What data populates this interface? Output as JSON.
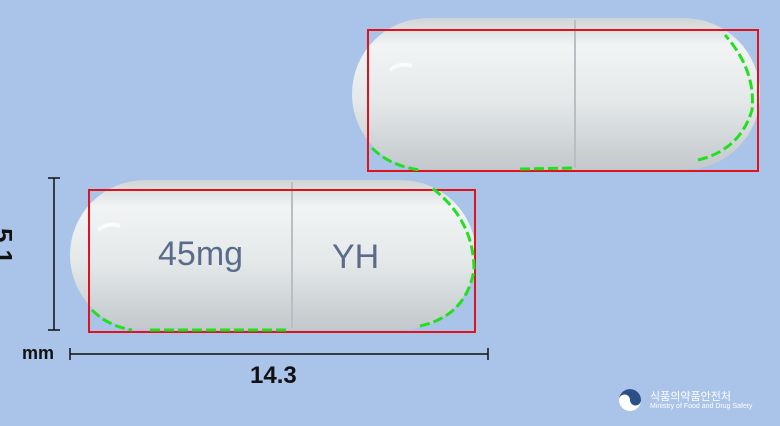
{
  "capsule_front": {
    "imprint_left": "45mg",
    "imprint_right": "YH"
  },
  "dimensions": {
    "height": "5.1",
    "unit": "mm",
    "length": "14.3"
  },
  "logo": {
    "korean": "식품의약품안전처",
    "english": "Ministry of Food and Drug Safety"
  },
  "colors": {
    "background": "#a9c3e9",
    "capsule": "#e6e9ea",
    "bounding_box": "#e0121b",
    "contour": "#22e020"
  }
}
